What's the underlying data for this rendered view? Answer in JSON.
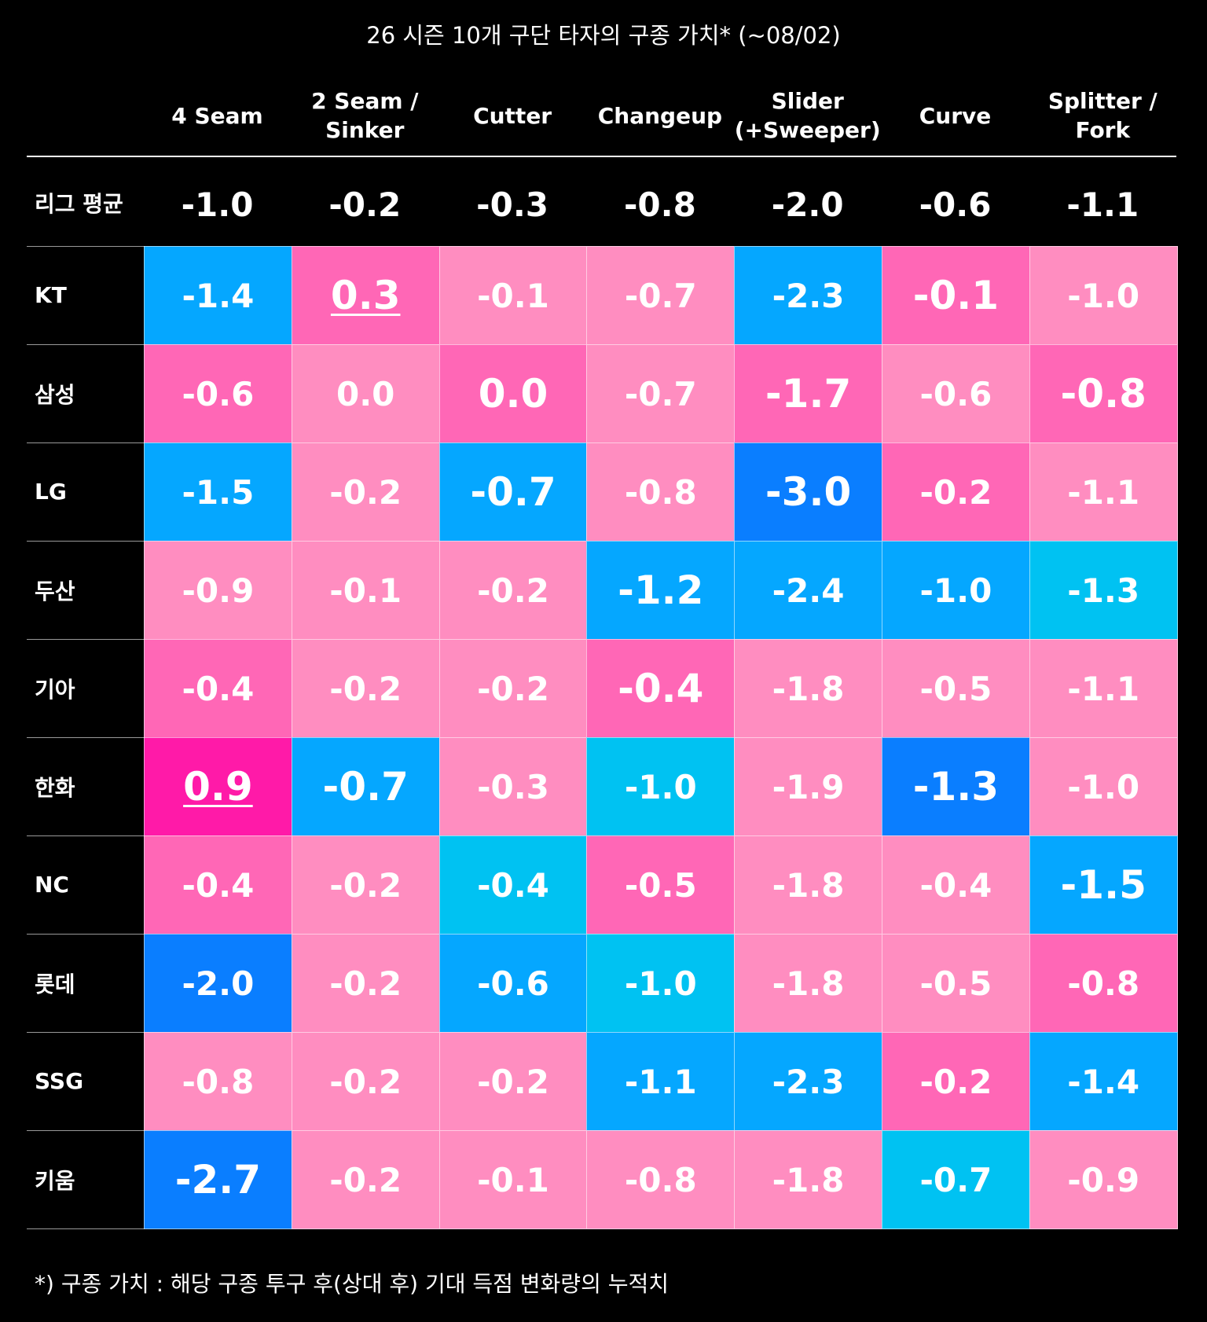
{
  "title": "26 시즌 10개 구단 타자의 구종 가치* (~08/02)",
  "footnote": "*) 구종 가치 :  해당 구종 투구 후(상대 후) 기대 득점 변화량의 누적치",
  "colors": {
    "light_pink": "#FF8DC0",
    "mid_pink": "#FF67B6",
    "hot_pink": "#FF1AA8",
    "light_blue": "#00C2F2",
    "mid_blue": "#05A7FF",
    "dark_blue": "#0A7EFF"
  },
  "chart_data": {
    "type": "heatmap",
    "title": "26 시즌 10개 구단 타자의 구종 가치* (~08/02)",
    "columns": [
      "4 Seam",
      "2 Seam /\nSinker",
      "Cutter",
      "Changeup",
      "Slider\n(+Sweeper)",
      "Curve",
      "Splitter /\nFork"
    ],
    "league_average": {
      "label": "리그 평균",
      "values": [
        "-1.0",
        "-0.2",
        "-0.3",
        "-0.8",
        "-2.0",
        "-0.6",
        "-1.1"
      ]
    },
    "rows": [
      {
        "team": "KT",
        "values": [
          "-1.4",
          "0.3",
          "-0.1",
          "-0.7",
          "-2.3",
          "-0.1",
          "-1.0"
        ]
      },
      {
        "team": "삼성",
        "values": [
          "-0.6",
          "0.0",
          "0.0",
          "-0.7",
          "-1.7",
          "-0.6",
          "-0.8"
        ]
      },
      {
        "team": "LG",
        "values": [
          "-1.5",
          "-0.2",
          "-0.7",
          "-0.8",
          "-3.0",
          "-0.2",
          "-1.1"
        ]
      },
      {
        "team": "두산",
        "values": [
          "-0.9",
          "-0.1",
          "-0.2",
          "-1.2",
          "-2.4",
          "-1.0",
          "-1.3"
        ]
      },
      {
        "team": "기아",
        "values": [
          "-0.4",
          "-0.2",
          "-0.2",
          "-0.4",
          "-1.8",
          "-0.5",
          "-1.1"
        ]
      },
      {
        "team": "한화",
        "values": [
          "0.9",
          "-0.7",
          "-0.3",
          "-1.0",
          "-1.9",
          "-1.3",
          "-1.0"
        ]
      },
      {
        "team": "NC",
        "values": [
          "-0.4",
          "-0.2",
          "-0.4",
          "-0.5",
          "-1.8",
          "-0.4",
          "-1.5"
        ]
      },
      {
        "team": "롯데",
        "values": [
          "-2.0",
          "-0.2",
          "-0.6",
          "-1.0",
          "-1.8",
          "-0.5",
          "-0.8"
        ]
      },
      {
        "team": "SSG",
        "values": [
          "-0.8",
          "-0.2",
          "-0.2",
          "-1.1",
          "-2.3",
          "-0.2",
          "-1.4"
        ]
      },
      {
        "team": "키움",
        "values": [
          "-2.7",
          "-0.2",
          "-0.1",
          "-0.8",
          "-1.8",
          "-0.7",
          "-0.9"
        ]
      }
    ],
    "cell_colors": [
      [
        "mid_blue",
        "mid_pink",
        "light_pink",
        "light_pink",
        "mid_blue",
        "mid_pink",
        "light_pink"
      ],
      [
        "mid_pink",
        "light_pink",
        "mid_pink",
        "light_pink",
        "mid_pink",
        "light_pink",
        "mid_pink"
      ],
      [
        "mid_blue",
        "light_pink",
        "mid_blue",
        "light_pink",
        "dark_blue",
        "mid_pink",
        "light_pink"
      ],
      [
        "light_pink",
        "light_pink",
        "light_pink",
        "mid_blue",
        "mid_blue",
        "mid_blue",
        "light_blue"
      ],
      [
        "mid_pink",
        "light_pink",
        "light_pink",
        "mid_pink",
        "light_pink",
        "light_pink",
        "light_pink"
      ],
      [
        "hot_pink",
        "mid_blue",
        "light_pink",
        "light_blue",
        "light_pink",
        "dark_blue",
        "light_pink"
      ],
      [
        "mid_pink",
        "light_pink",
        "light_blue",
        "mid_pink",
        "light_pink",
        "light_pink",
        "mid_blue"
      ],
      [
        "dark_blue",
        "light_pink",
        "mid_blue",
        "light_blue",
        "light_pink",
        "light_pink",
        "mid_pink"
      ],
      [
        "light_pink",
        "light_pink",
        "light_pink",
        "mid_blue",
        "mid_blue",
        "mid_pink",
        "mid_blue"
      ],
      [
        "dark_blue",
        "light_pink",
        "light_pink",
        "light_pink",
        "light_pink",
        "light_blue",
        "light_pink"
      ]
    ],
    "emphasized_cells": [
      [
        0,
        1
      ],
      [
        0,
        5
      ],
      [
        1,
        2
      ],
      [
        1,
        4
      ],
      [
        1,
        6
      ],
      [
        2,
        2
      ],
      [
        2,
        4
      ],
      [
        3,
        3
      ],
      [
        4,
        3
      ],
      [
        5,
        0
      ],
      [
        5,
        1
      ],
      [
        5,
        5
      ],
      [
        6,
        6
      ],
      [
        9,
        0
      ]
    ],
    "underlined_cells": [
      [
        0,
        1
      ],
      [
        5,
        0
      ]
    ]
  }
}
